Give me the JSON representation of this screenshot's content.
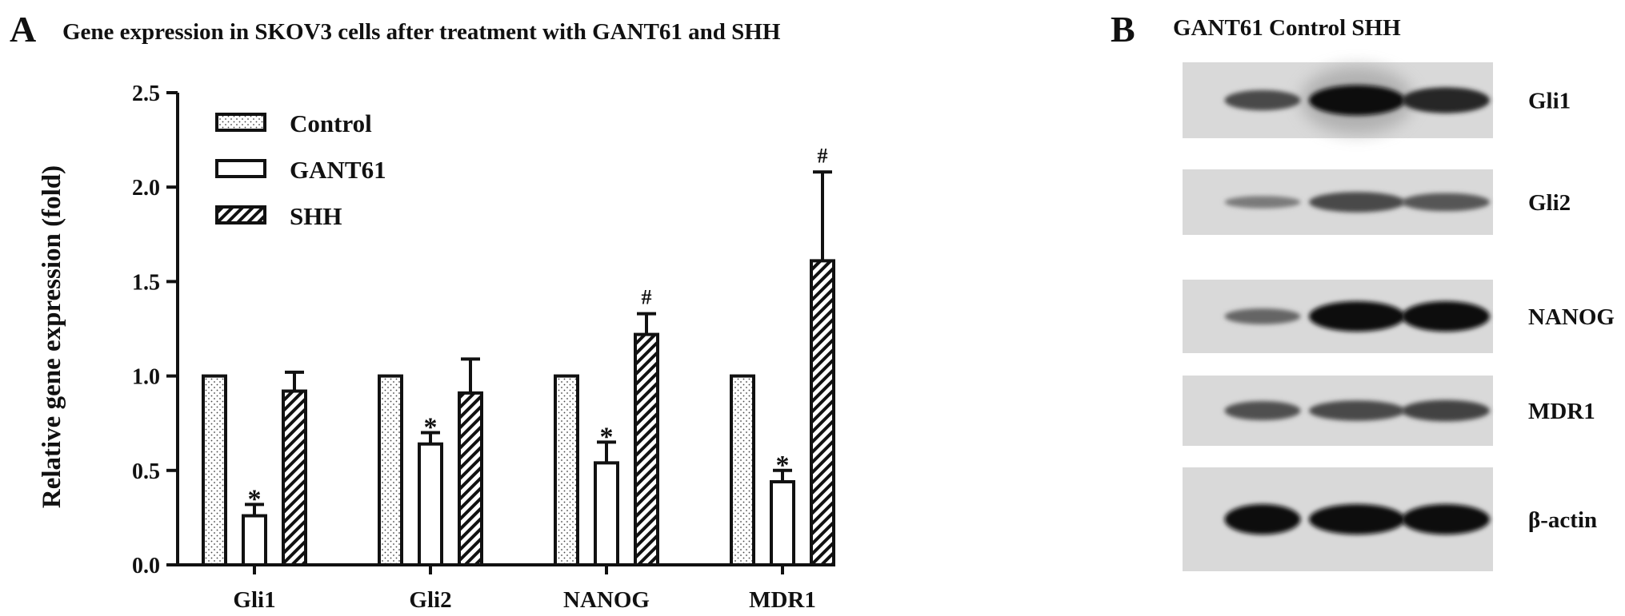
{
  "panel_a": {
    "letter": "A",
    "title": "Gene expression in SKOV3 cells after treatment with GANT61 and SHH"
  },
  "panel_b": {
    "letter": "B",
    "lane_header": "GANT61 Control SHH",
    "blots": [
      {
        "label": "Gli1",
        "bands": [
          0.55,
          1.0,
          0.8
        ],
        "smudge": true
      },
      {
        "label": "Gli2",
        "bands": [
          0.2,
          0.55,
          0.45
        ],
        "smudge": false
      },
      {
        "label": "NANOG",
        "bands": [
          0.35,
          1.0,
          1.0
        ],
        "smudge": false
      },
      {
        "label": "MDR1",
        "bands": [
          0.5,
          0.55,
          0.6
        ],
        "smudge": false
      },
      {
        "label": "β-actin",
        "bands": [
          1.0,
          1.0,
          1.0
        ],
        "smudge": false
      }
    ]
  },
  "chart_data": {
    "type": "bar",
    "title": "",
    "ylabel": "Relative gene expression (fold)",
    "xlabel": "",
    "ylim": [
      0,
      2.5
    ],
    "yticks": [
      "0.0",
      "0.5",
      "1.0",
      "1.5",
      "2.0",
      "2.5"
    ],
    "ytick_values": [
      0,
      0.5,
      1.0,
      1.5,
      2.0,
      2.5
    ],
    "categories": [
      "Gli1",
      "Gli2",
      "NANOG",
      "MDR1"
    ],
    "legend_position": "top-left",
    "series": [
      {
        "name": "Control",
        "pattern": "dots",
        "values": [
          1.0,
          1.0,
          1.0,
          1.0
        ],
        "errors": [
          0,
          0,
          0,
          0
        ],
        "marks": [
          "",
          "",
          "",
          ""
        ]
      },
      {
        "name": "GANT61",
        "pattern": "open",
        "values": [
          0.26,
          0.64,
          0.54,
          0.44
        ],
        "errors": [
          0.06,
          0.06,
          0.11,
          0.06
        ],
        "marks": [
          "*",
          "*",
          "*",
          "*"
        ]
      },
      {
        "name": "SHH",
        "pattern": "hatch",
        "values": [
          0.92,
          0.91,
          1.22,
          1.61
        ],
        "errors": [
          0.1,
          0.18,
          0.11,
          0.47
        ],
        "marks": [
          "",
          "",
          "#",
          "#"
        ]
      }
    ]
  }
}
